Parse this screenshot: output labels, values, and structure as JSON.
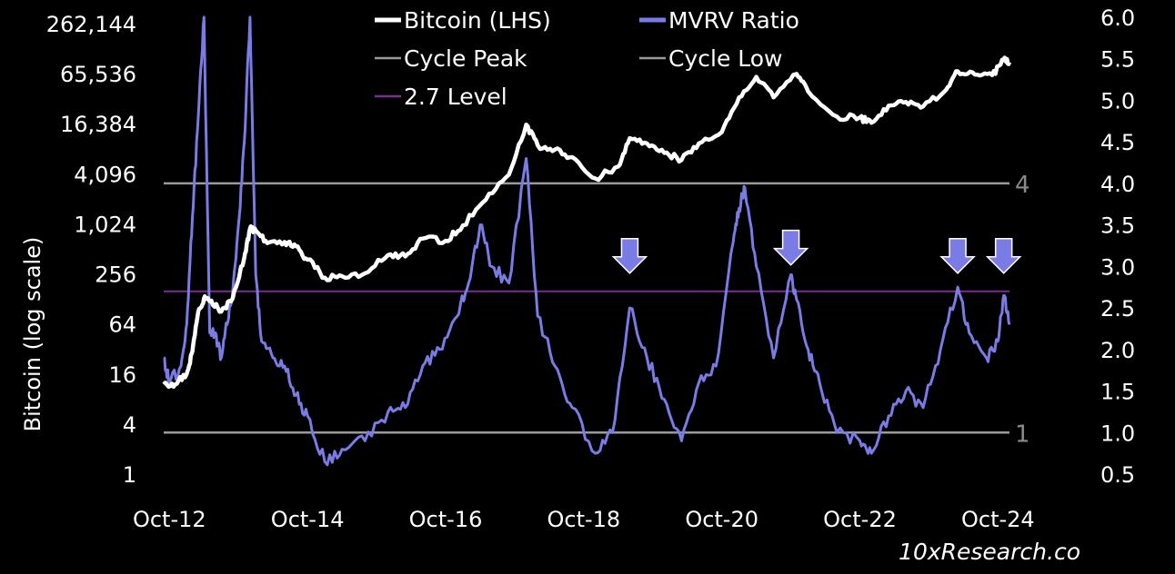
{
  "chart_data": {
    "type": "line",
    "left_axis": {
      "label": "Bitcoin (log scale)",
      "scale": "log2",
      "ticks": [
        1,
        4,
        16,
        64,
        256,
        1024,
        4096,
        16384,
        65536,
        262144
      ],
      "tick_labels": [
        "1",
        "4",
        "16",
        "64",
        "256",
        "1,024",
        "4,096",
        "16,384",
        "65,536",
        "262,144"
      ]
    },
    "right_axis": {
      "ticks": [
        0.5,
        1.0,
        1.5,
        2.0,
        2.5,
        3.0,
        3.5,
        4.0,
        4.5,
        5.0,
        5.5,
        6.0
      ],
      "tick_labels": [
        "0.5",
        "1.0",
        "1.5",
        "2.0",
        "2.5",
        "3.0",
        "3.5",
        "4.0",
        "4.5",
        "5.0",
        "5.5",
        "6.0"
      ],
      "ylim": [
        0.5,
        6.0
      ]
    },
    "x_axis": {
      "ticks": [
        "2012-10",
        "2014-10",
        "2016-10",
        "2018-10",
        "2020-10",
        "2022-10",
        "2024-10"
      ],
      "tick_labels": [
        "Oct-12",
        "Oct-14",
        "Oct-16",
        "Oct-18",
        "Oct-20",
        "Oct-22",
        "Oct-24"
      ],
      "xlim": [
        "2012-09",
        "2024-12"
      ]
    },
    "legend": {
      "placement": "top",
      "entries": [
        {
          "label": "Bitcoin (LHS)",
          "color": "#ffffff"
        },
        {
          "label": "MVRV Ratio",
          "color": "#7b7be6"
        },
        {
          "label": "Cycle Peak",
          "color": "#9a9a9a"
        },
        {
          "label": "Cycle Low",
          "color": "#9a9a9a"
        },
        {
          "label": "2.7 Level",
          "color": "#7a2f8f"
        }
      ]
    },
    "series": [
      {
        "name": "Bitcoin (LHS)",
        "axis": "left",
        "color": "#ffffff",
        "points": [
          [
            "2012-09",
            12
          ],
          [
            "2012-11",
            12
          ],
          [
            "2013-01",
            16
          ],
          [
            "2013-02",
            30
          ],
          [
            "2013-03",
            90
          ],
          [
            "2013-04",
            130
          ],
          [
            "2013-05",
            120
          ],
          [
            "2013-07",
            90
          ],
          [
            "2013-09",
            130
          ],
          [
            "2013-11",
            400
          ],
          [
            "2013-12",
            900
          ],
          [
            "2014-01",
            850
          ],
          [
            "2014-03",
            600
          ],
          [
            "2014-06",
            620
          ],
          [
            "2014-08",
            550
          ],
          [
            "2014-10",
            380
          ],
          [
            "2015-01",
            230
          ],
          [
            "2015-04",
            240
          ],
          [
            "2015-08",
            260
          ],
          [
            "2015-12",
            430
          ],
          [
            "2016-03",
            415
          ],
          [
            "2016-06",
            680
          ],
          [
            "2016-10",
            640
          ],
          [
            "2017-01",
            980
          ],
          [
            "2017-05",
            2000
          ],
          [
            "2017-09",
            4000
          ],
          [
            "2017-12",
            16000
          ],
          [
            "2018-02",
            9000
          ],
          [
            "2018-05",
            8000
          ],
          [
            "2018-08",
            6500
          ],
          [
            "2018-12",
            3600
          ],
          [
            "2019-04",
            5000
          ],
          [
            "2019-06",
            11000
          ],
          [
            "2019-09",
            9500
          ],
          [
            "2019-12",
            7300
          ],
          [
            "2020-03",
            6000
          ],
          [
            "2020-06",
            9500
          ],
          [
            "2020-10",
            13000
          ],
          [
            "2021-01",
            34000
          ],
          [
            "2021-04",
            60000
          ],
          [
            "2021-07",
            34000
          ],
          [
            "2021-11",
            65000
          ],
          [
            "2022-01",
            40000
          ],
          [
            "2022-06",
            20000
          ],
          [
            "2022-10",
            19500
          ],
          [
            "2022-12",
            16800
          ],
          [
            "2023-03",
            27000
          ],
          [
            "2023-06",
            30000
          ],
          [
            "2023-09",
            26500
          ],
          [
            "2024-01",
            42000
          ],
          [
            "2024-03",
            70000
          ],
          [
            "2024-06",
            64000
          ],
          [
            "2024-09",
            63000
          ],
          [
            "2024-11",
            95000
          ],
          [
            "2024-12",
            90000
          ]
        ]
      },
      {
        "name": "MVRV Ratio",
        "axis": "right",
        "color": "#7b7be6",
        "points": [
          [
            "2012-09",
            1.9
          ],
          [
            "2012-10",
            1.6
          ],
          [
            "2012-12",
            1.8
          ],
          [
            "2013-01",
            2.3
          ],
          [
            "2013-02",
            3.6
          ],
          [
            "2013-03",
            4.8
          ],
          [
            "2013-04",
            6.0
          ],
          [
            "2013-05",
            2.2
          ],
          [
            "2013-06",
            2.2
          ],
          [
            "2013-07",
            1.9
          ],
          [
            "2013-08",
            2.3
          ],
          [
            "2013-09",
            2.7
          ],
          [
            "2013-10",
            3.5
          ],
          [
            "2013-11",
            4.5
          ],
          [
            "2013-12",
            6.0
          ],
          [
            "2014-01",
            2.9
          ],
          [
            "2014-02",
            2.1
          ],
          [
            "2014-04",
            1.9
          ],
          [
            "2014-06",
            1.8
          ],
          [
            "2014-08",
            1.45
          ],
          [
            "2014-10",
            1.2
          ],
          [
            "2015-01",
            0.65
          ],
          [
            "2015-04",
            0.8
          ],
          [
            "2015-08",
            0.9
          ],
          [
            "2015-12",
            1.25
          ],
          [
            "2016-03",
            1.3
          ],
          [
            "2016-06",
            1.8
          ],
          [
            "2016-09",
            2.0
          ],
          [
            "2016-12",
            2.4
          ],
          [
            "2017-02",
            2.8
          ],
          [
            "2017-04",
            3.5
          ],
          [
            "2017-06",
            3.0
          ],
          [
            "2017-09",
            2.8
          ],
          [
            "2017-12",
            4.3
          ],
          [
            "2018-02",
            2.4
          ],
          [
            "2018-05",
            1.8
          ],
          [
            "2018-08",
            1.3
          ],
          [
            "2018-12",
            0.75
          ],
          [
            "2019-03",
            1.0
          ],
          [
            "2019-06",
            2.5
          ],
          [
            "2019-09",
            1.9
          ],
          [
            "2019-12",
            1.4
          ],
          [
            "2020-03",
            0.9
          ],
          [
            "2020-06",
            1.6
          ],
          [
            "2020-09",
            1.8
          ],
          [
            "2020-12",
            3.3
          ],
          [
            "2021-01",
            3.7
          ],
          [
            "2021-02",
            3.95
          ],
          [
            "2021-04",
            3.0
          ],
          [
            "2021-07",
            1.9
          ],
          [
            "2021-10",
            2.9
          ],
          [
            "2021-11",
            2.6
          ],
          [
            "2022-01",
            2.0
          ],
          [
            "2022-03",
            1.6
          ],
          [
            "2022-06",
            1.0
          ],
          [
            "2022-10",
            0.9
          ],
          [
            "2022-12",
            0.75
          ],
          [
            "2023-03",
            1.2
          ],
          [
            "2023-06",
            1.5
          ],
          [
            "2023-09",
            1.3
          ],
          [
            "2023-12",
            2.0
          ],
          [
            "2024-03",
            2.75
          ],
          [
            "2024-05",
            2.2
          ],
          [
            "2024-08",
            1.9
          ],
          [
            "2024-10",
            2.1
          ],
          [
            "2024-11",
            2.65
          ],
          [
            "2024-12",
            2.3
          ]
        ]
      }
    ],
    "reference_lines": [
      {
        "name": "Cycle Peak",
        "axis": "right",
        "value": 4.0,
        "label": "4",
        "color": "#9a9a9a"
      },
      {
        "name": "Cycle Low",
        "axis": "right",
        "value": 1.0,
        "label": "1",
        "color": "#9a9a9a"
      },
      {
        "name": "2.7 Level",
        "axis": "right",
        "value": 2.7,
        "color": "#7a2f8f"
      }
    ],
    "annotations": [
      {
        "type": "arrow-down",
        "x": "2019-06",
        "y": 3.05
      },
      {
        "type": "arrow-down",
        "x": "2021-10",
        "y": 3.15
      },
      {
        "type": "arrow-down",
        "x": "2024-03",
        "y": 3.05
      },
      {
        "type": "arrow-down",
        "x": "2024-11",
        "y": 3.05
      }
    ]
  },
  "credit": "10xResearch.co",
  "colors": {
    "background": "#000000",
    "bitcoin": "#ffffff",
    "mvrv": "#7b7be6",
    "reference": "#9a9a9a",
    "level": "#7a2f8f",
    "arrow": "#7b7be6"
  }
}
